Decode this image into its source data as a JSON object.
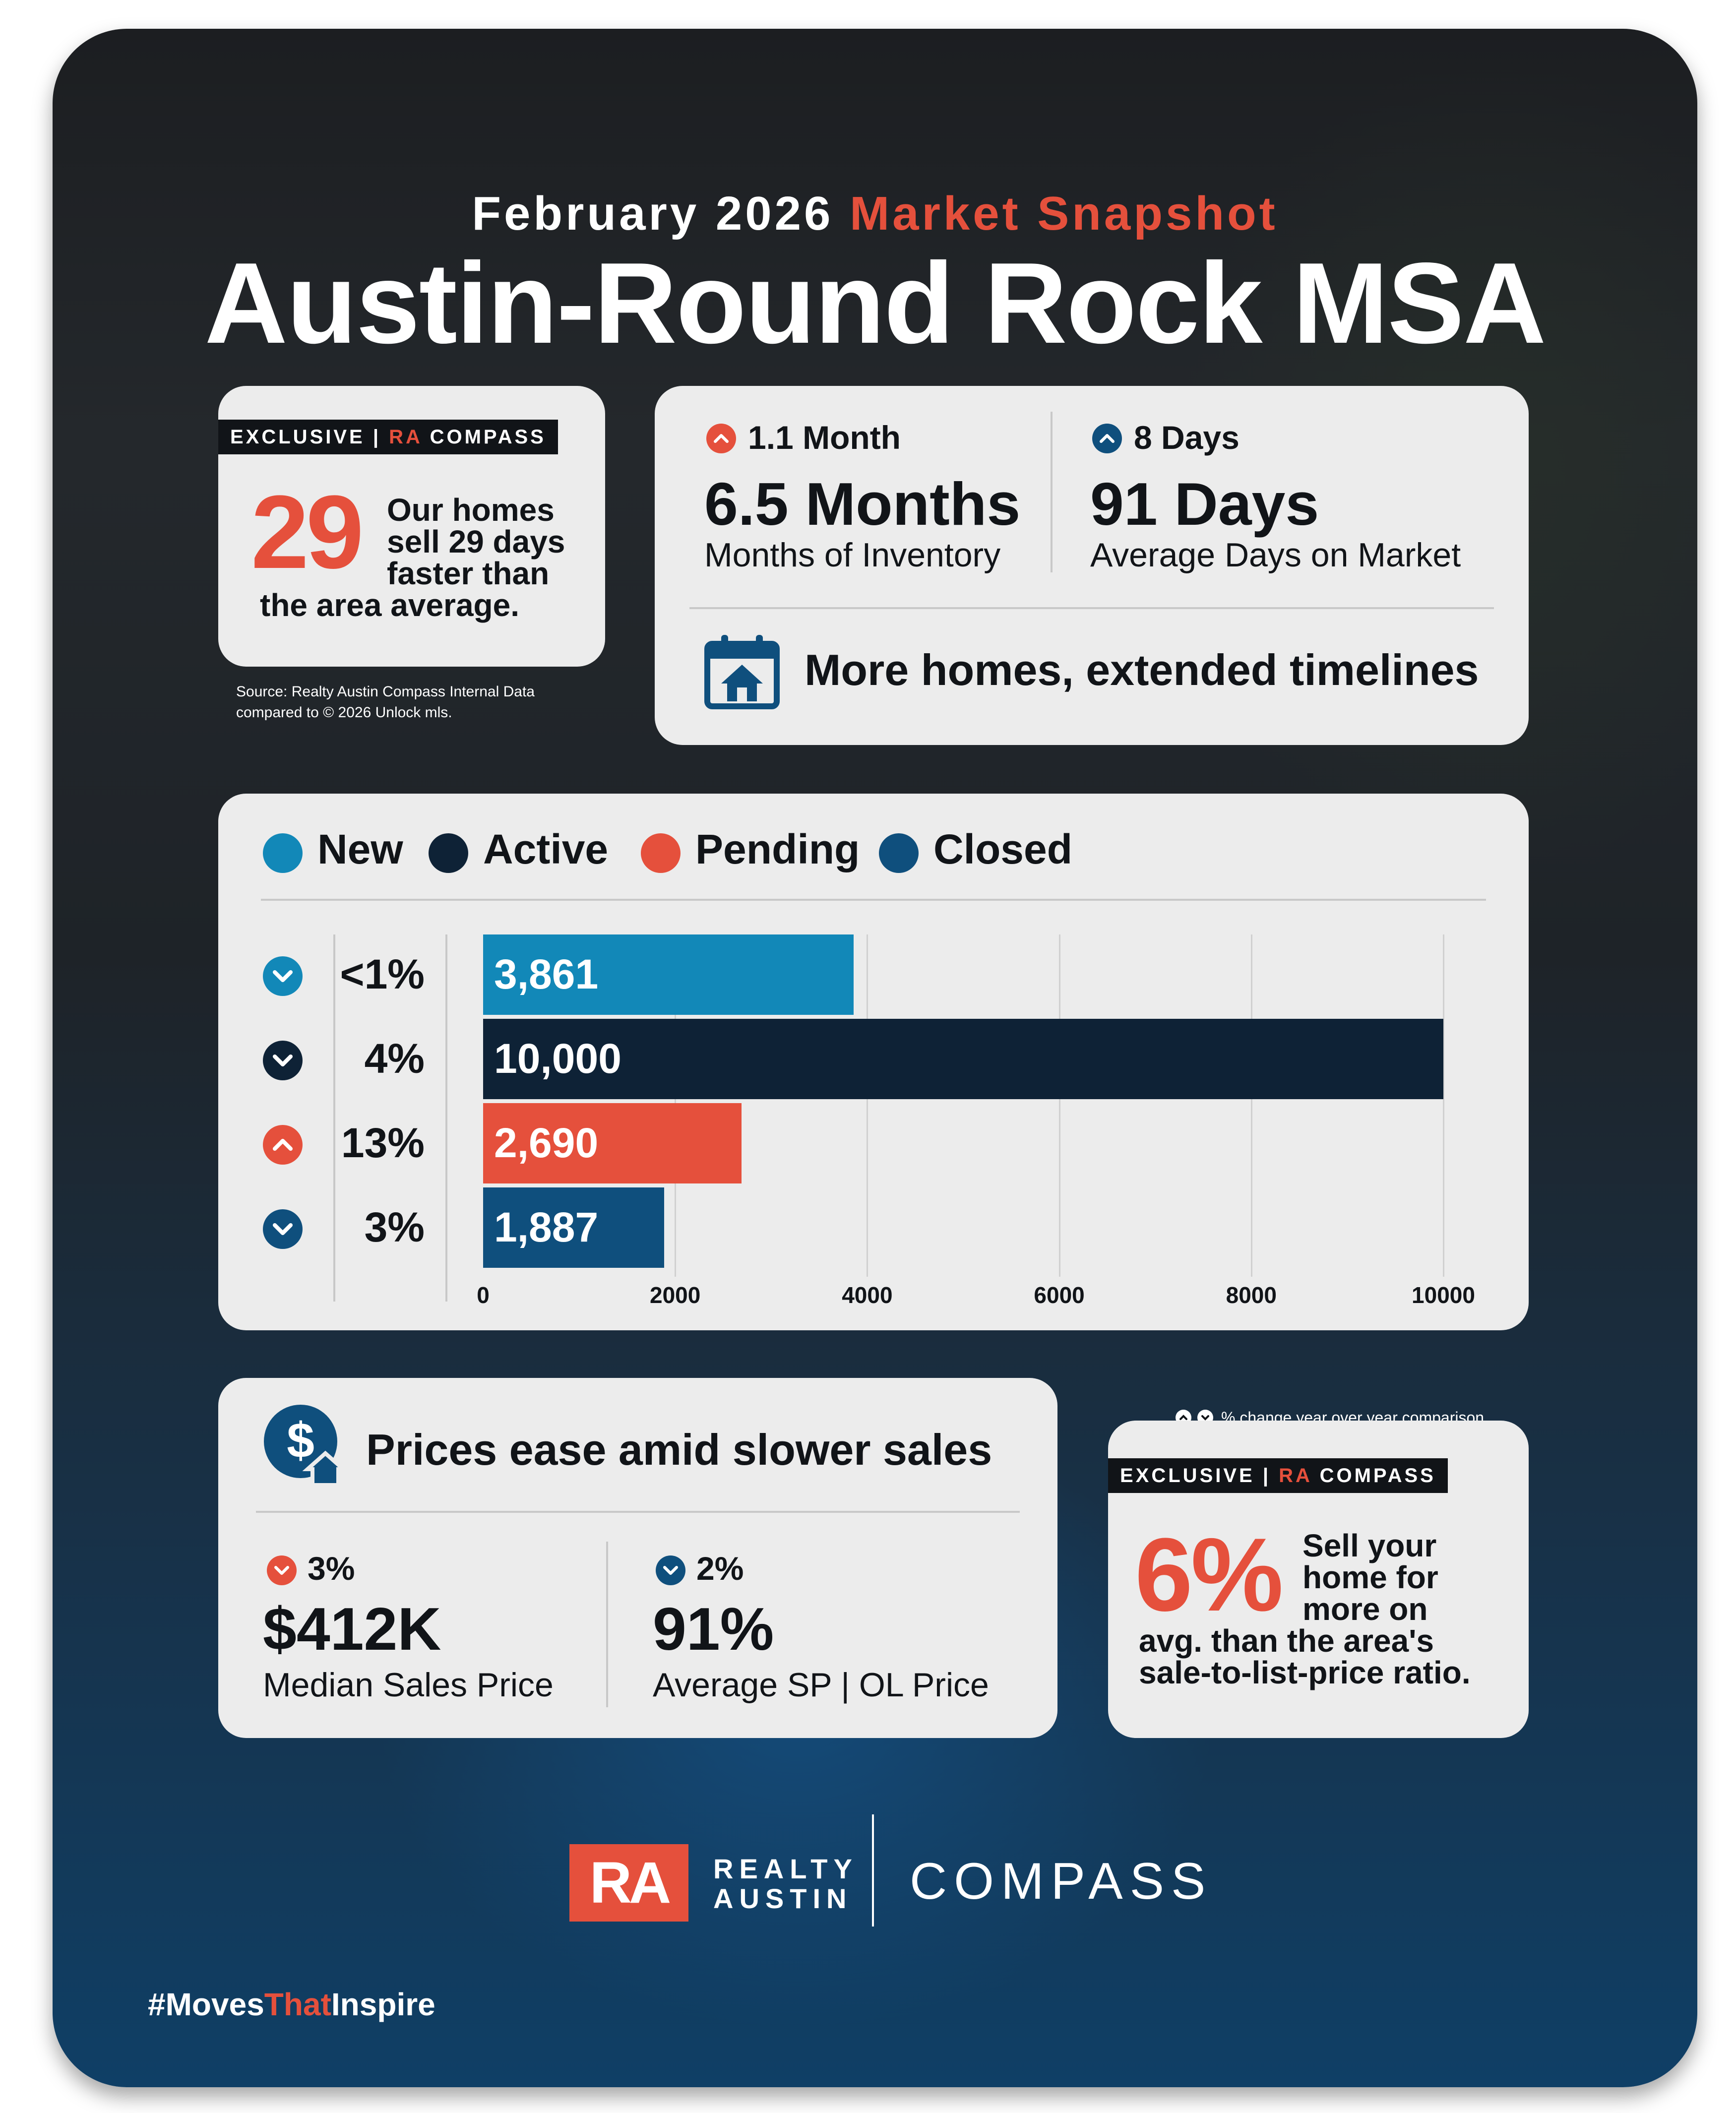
{
  "header": {
    "month": "February 2026",
    "subtitle_accent": "Market Snapshot",
    "title": "Austin-Round Rock MSA"
  },
  "exclusive_card": {
    "tag_prefix": "EXCLUSIVE",
    "tag_ra": "RA",
    "tag_brand": "COMPASS",
    "number": "29",
    "line1": "Our homes",
    "line2": "sell 29 days",
    "line3": "faster than",
    "line4": "the area average.",
    "source_line1": "Source: Realty Austin Compass Internal Data",
    "source_line2": "compared to © 2026 Unlock mls."
  },
  "inventory_card": {
    "left_change": "1.1 Month",
    "left_change_dir": "up",
    "left_value": "6.5 Months",
    "left_label": "Months of Inventory",
    "right_change": "8 Days",
    "right_change_dir": "up",
    "right_value": "91 Days",
    "right_label": "Average Days on Market",
    "headline": "More homes, extended timelines",
    "icon": "calendar-house-icon"
  },
  "legend": [
    {
      "label": "New",
      "color": "#1288b8"
    },
    {
      "label": "Active",
      "color": "#0e2236"
    },
    {
      "label": "Pending",
      "color": "#e5503c"
    },
    {
      "label": "Closed",
      "color": "#0f4f7d"
    }
  ],
  "chart_data": {
    "type": "bar",
    "orientation": "horizontal",
    "categories": [
      "New",
      "Active",
      "Pending",
      "Closed"
    ],
    "values": [
      3861,
      10000,
      2690,
      1887
    ],
    "value_labels": [
      "3,861",
      "10,000",
      "2,690",
      "1,887"
    ],
    "changes": [
      "<1%",
      "4%",
      "13%",
      "3%"
    ],
    "change_dirs": [
      "down",
      "down",
      "up",
      "down"
    ],
    "colors": [
      "#1288b8",
      "#0e2236",
      "#e5503c",
      "#0f4f7d"
    ],
    "xlim": [
      0,
      10000
    ],
    "xticks": [
      "0",
      "2000",
      "4000",
      "6000",
      "8000",
      "10000"
    ],
    "grid": true,
    "legend_position": "top"
  },
  "prices_card": {
    "headline": "Prices ease amid slower sales",
    "icon": "dollar-house-icon",
    "left_change": "3%",
    "left_change_dir": "down",
    "left_value": "$412K",
    "left_label": "Median Sales Price",
    "right_change": "2%",
    "right_change_dir": "down",
    "right_value": "91%",
    "right_label": "Average SP | OL Price"
  },
  "note": "% change year over year comparison",
  "exclusive_card2": {
    "tag_prefix": "EXCLUSIVE",
    "tag_ra": "RA",
    "tag_brand": "COMPASS",
    "number": "6%",
    "line1": "Sell your",
    "line2": "home for",
    "line3": "more on",
    "line4": "avg. than the area's",
    "line5": "sale-to-list-price ratio."
  },
  "footer": {
    "logo_ra": "RA",
    "logo_realty": "REALTY",
    "logo_austin": "AUSTIN",
    "logo_compass": "COMPASS",
    "hashtag_a": "#Moves",
    "hashtag_b": "That",
    "hashtag_c": "Inspire"
  },
  "colors": {
    "accent_red": "#e5503c",
    "dark": "#111418",
    "blue": "#0f4f7d",
    "card": "#ececec"
  }
}
